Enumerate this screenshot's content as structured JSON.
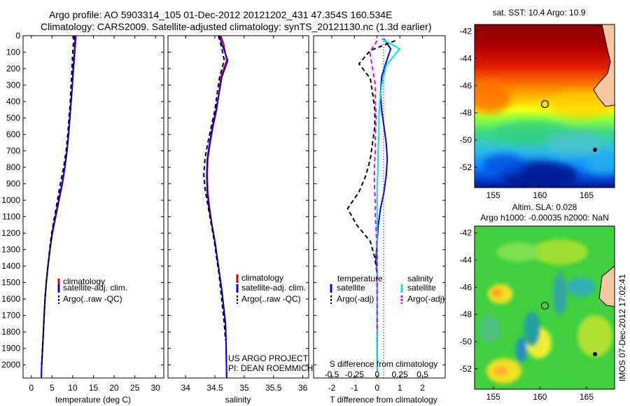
{
  "header": {
    "line1": "Argo profile: AO 5903314_105 01-Dec-2012 20121202_431 47.354S 160.534E",
    "line2": "Climatology: CARS2009. Satellite-adjusted climatology: synTS_20121130.nc (1.3d earlier)"
  },
  "colors": {
    "climatology": "#dd0000",
    "satellite": "#0000ee",
    "argo": "#000000",
    "sal_satellite": "#00e5e5",
    "sal_argo": "#ee00ee"
  },
  "chart_data": [
    {
      "type": "line",
      "id": "temperature_profile",
      "xlabel": "temperature (deg C)",
      "ylabel": "",
      "xlim": [
        -2,
        32
      ],
      "ylim": [
        2080,
        0
      ],
      "xticks": [
        0,
        5,
        10,
        15,
        20,
        25,
        30
      ],
      "yticks": [
        0,
        100,
        200,
        300,
        400,
        500,
        600,
        700,
        800,
        900,
        1000,
        1100,
        1200,
        1300,
        1400,
        1500,
        1600,
        1700,
        1800,
        1900,
        2000
      ],
      "legend": [
        "climatology",
        "satellite-adj. clim.",
        "Argo(..raw -QC)"
      ],
      "series": [
        {
          "name": "climatology",
          "color": "#dd0000",
          "dash": "solid",
          "x": [
            10.8,
            10.5,
            10.2,
            9.9,
            9.6,
            9.3,
            9.0,
            8.6,
            8.1,
            7.5,
            6.7,
            5.9,
            5.1,
            4.5,
            4.0,
            3.6,
            3.3,
            3.1,
            2.9,
            2.7,
            2.5,
            2.4
          ],
          "y": [
            0,
            100,
            200,
            300,
            400,
            500,
            600,
            700,
            800,
            900,
            1000,
            1100,
            1200,
            1300,
            1400,
            1500,
            1600,
            1700,
            1800,
            1900,
            2000,
            2080
          ]
        },
        {
          "name": "satellite-adj. clim.",
          "color": "#0000ee",
          "dash": "solid",
          "x": [
            10.6,
            10.4,
            10.1,
            9.9,
            9.6,
            9.3,
            9.0,
            8.6,
            8.1,
            7.4,
            6.6,
            5.8,
            5.0,
            4.5,
            4.0,
            3.6,
            3.3,
            3.1,
            2.9,
            2.7,
            2.5,
            2.4
          ],
          "y": [
            0,
            100,
            200,
            300,
            400,
            500,
            600,
            700,
            800,
            900,
            1000,
            1100,
            1200,
            1300,
            1400,
            1500,
            1600,
            1700,
            1800,
            1900,
            2000,
            2080
          ]
        },
        {
          "name": "Argo(..raw -QC)",
          "color": "#000000",
          "dash": "dashed",
          "x": [
            10.3,
            10.0,
            9.8,
            9.6,
            9.4,
            9.1,
            8.8,
            8.4,
            7.8,
            7.0,
            6.3,
            5.6,
            4.9,
            4.4,
            4.0,
            3.6,
            3.3,
            3.1,
            2.9,
            2.7,
            2.5
          ],
          "y": [
            0,
            100,
            200,
            300,
            400,
            500,
            600,
            700,
            800,
            900,
            1000,
            1100,
            1200,
            1300,
            1400,
            1500,
            1600,
            1700,
            1800,
            1900,
            2000
          ]
        }
      ]
    },
    {
      "type": "line",
      "id": "salinity_profile",
      "xlabel": "salinity",
      "xlim": [
        33.7,
        36.1
      ],
      "ylim": [
        2080,
        0
      ],
      "xticks": [
        34,
        34.5,
        35,
        35.5,
        36
      ],
      "legend": [
        "climatology",
        "satellite-adj. clim.",
        "Argo(..raw -QC)"
      ],
      "annotation": [
        "US ARGO PROJECT",
        "PI: DEAN ROEMMICH"
      ],
      "series": [
        {
          "name": "climatology",
          "color": "#dd0000",
          "dash": "solid",
          "x": [
            34.6,
            34.65,
            34.7,
            34.6,
            34.57,
            34.53,
            34.47,
            34.42,
            34.38,
            34.37,
            34.38,
            34.41,
            34.45,
            34.5,
            34.54,
            34.58,
            34.62,
            34.65,
            34.68,
            34.69,
            34.7
          ],
          "y": [
            0,
            50,
            150,
            250,
            350,
            450,
            550,
            650,
            750,
            850,
            950,
            1050,
            1150,
            1250,
            1350,
            1450,
            1550,
            1650,
            1750,
            1850,
            2080
          ]
        },
        {
          "name": "satellite-adj. clim.",
          "color": "#0000ee",
          "dash": "solid",
          "x": [
            34.58,
            34.62,
            34.72,
            34.62,
            34.57,
            34.52,
            34.46,
            34.41,
            34.37,
            34.36,
            34.37,
            34.4,
            34.45,
            34.5,
            34.54,
            34.58,
            34.62,
            34.65,
            34.68,
            34.69,
            34.7
          ],
          "y": [
            0,
            50,
            150,
            250,
            350,
            450,
            550,
            650,
            750,
            850,
            950,
            1050,
            1150,
            1250,
            1350,
            1450,
            1550,
            1650,
            1750,
            1850,
            2080
          ]
        },
        {
          "name": "Argo(..raw -QC)",
          "color": "#000000",
          "dash": "dashed",
          "x": [
            34.56,
            34.6,
            34.66,
            34.58,
            34.54,
            34.5,
            34.44,
            34.38,
            34.33,
            34.31,
            34.34,
            34.39,
            34.44,
            34.49,
            34.53,
            34.57,
            34.6,
            34.63,
            34.66,
            34.68
          ],
          "y": [
            0,
            50,
            150,
            250,
            350,
            450,
            550,
            650,
            750,
            850,
            950,
            1050,
            1150,
            1250,
            1350,
            1450,
            1550,
            1650,
            1750,
            1850
          ]
        }
      ]
    },
    {
      "type": "line",
      "id": "difference_profile",
      "xlabel": "T difference from climatology",
      "xlabel_top": "S difference from climatology",
      "xlim": [
        -2.8,
        3.0
      ],
      "ylim": [
        2080,
        0
      ],
      "xticks": [
        -2,
        -1,
        0,
        1,
        2
      ],
      "xticks_s_labels": [
        "-0.5",
        "-0.25",
        "0",
        "0.25",
        "0.5"
      ],
      "legend": {
        "temperature_title": "temperature",
        "salinity_title": "salinity",
        "items": [
          "satellite",
          "Argo(-adj)",
          "satellite",
          "Argo(-adj)"
        ]
      },
      "series": [
        {
          "name": "temperature satellite",
          "color": "#0000ee",
          "dash": "solid",
          "x": [
            0.3,
            0.6,
            0.4,
            0.2,
            0.15,
            0.2,
            0.3,
            0.4,
            0.45,
            0.4,
            0.3,
            0.15,
            0.05,
            0.0,
            -0.05,
            0.0,
            0.0,
            0.0,
            0.0,
            0.0,
            0.0
          ],
          "y": [
            20,
            80,
            160,
            250,
            350,
            450,
            550,
            650,
            750,
            850,
            950,
            1050,
            1150,
            1250,
            1350,
            1450,
            1550,
            1650,
            1750,
            1900,
            2040
          ]
        },
        {
          "name": "temperature Argo(-adj)",
          "color": "#000000",
          "dash": "dashed",
          "x": [
            0.8,
            -0.3,
            -0.8,
            -0.3,
            -0.2,
            -0.1,
            -0.1,
            -0.2,
            -0.3,
            -0.5,
            -0.8,
            -1.3,
            -0.9,
            -0.3,
            -0.1,
            0.0,
            0.0,
            0.0,
            0.0,
            0.0
          ],
          "y": [
            30,
            90,
            170,
            260,
            350,
            450,
            550,
            650,
            750,
            850,
            950,
            1050,
            1150,
            1250,
            1350,
            1450,
            1550,
            1650,
            1800,
            1960
          ]
        },
        {
          "name": "salinity satellite",
          "color": "#00e5e5",
          "dash": "solid",
          "x": [
            0.05,
            0.25,
            0.1,
            0.05,
            0.03,
            0.02,
            0.02,
            0.01,
            0.01,
            0.0,
            0.0,
            0.0,
            0.0,
            0.0,
            0.0,
            0.0,
            0.0,
            0.0,
            0.0,
            0.0
          ],
          "y": [
            20,
            80,
            180,
            300,
            400,
            500,
            600,
            700,
            800,
            900,
            1000,
            1100,
            1200,
            1300,
            1400,
            1500,
            1600,
            1700,
            1850,
            2040
          ]
        },
        {
          "name": "salinity Argo(-adj)",
          "color": "#ee00ee",
          "dash": "dashed",
          "x": [
            0.0,
            -0.08,
            -0.05,
            -0.02,
            -0.02,
            -0.01,
            -0.02,
            -0.02,
            -0.03,
            -0.03,
            -0.02,
            -0.02,
            -0.01,
            0.0,
            0.0,
            0.0,
            0.0
          ],
          "y": [
            30,
            100,
            200,
            300,
            400,
            500,
            600,
            700,
            800,
            900,
            1000,
            1100,
            1200,
            1300,
            1450,
            1600,
            1800
          ]
        }
      ]
    },
    {
      "type": "heatmap",
      "id": "sst_map",
      "title": "sat. SST: 10.4  Argo: 10.9",
      "xlim": [
        153,
        168
      ],
      "ylim": [
        -53.5,
        -41.5
      ],
      "xticks": [
        155,
        160,
        165
      ],
      "yticks": [
        -42,
        -44,
        -46,
        -48,
        -50,
        -52
      ],
      "argo_position": {
        "lon": 160.534,
        "lat": -47.354
      }
    },
    {
      "type": "heatmap",
      "id": "sla_map",
      "title": "Altim. SLA: 0.028",
      "subtitle": "Argo h1000: -0.00035  h2000: NaN",
      "xlim": [
        153,
        168
      ],
      "ylim": [
        -53.5,
        -41.5
      ],
      "xticks": [
        155,
        160,
        165
      ],
      "yticks": [
        -42,
        -44,
        -46,
        -48,
        -50,
        -52
      ],
      "argo_position": {
        "lon": 160.534,
        "lat": -47.354
      }
    }
  ],
  "footer_stamp": "IMOS 07-Dec-2012 17:02:41"
}
